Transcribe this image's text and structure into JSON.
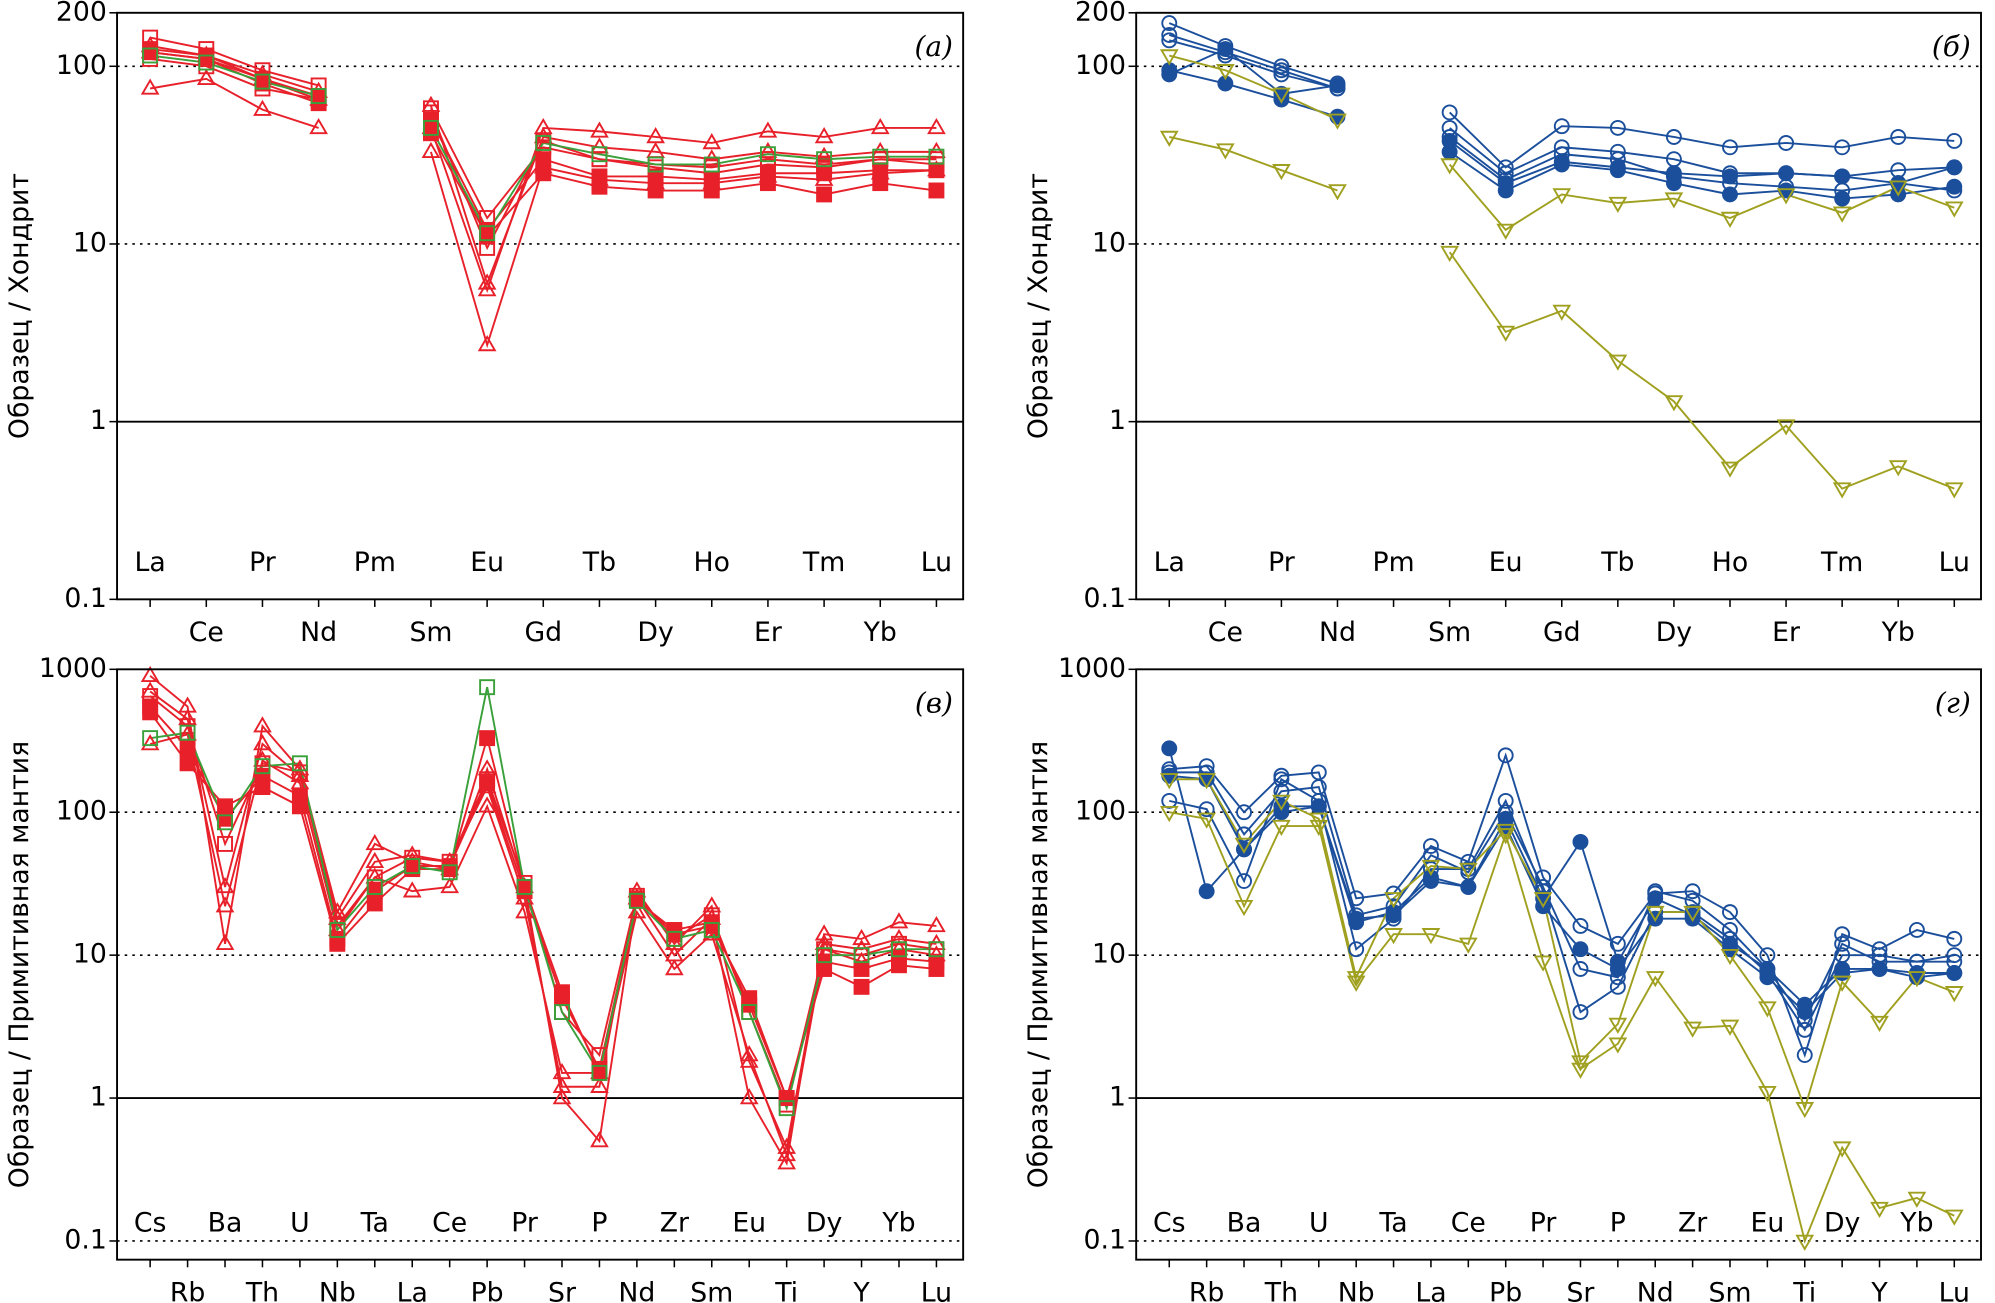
{
  "chart_data": [
    {
      "type": "line",
      "panel_label": "(а)",
      "y_label": "Образец / Хондрит",
      "log_scale": true,
      "reference_line": 1,
      "grid": "dotted",
      "categories": [
        "La",
        "Ce",
        "Pr",
        "Nd",
        "Pm",
        "Sm",
        "Eu",
        "Gd",
        "Tb",
        "Dy",
        "Ho",
        "Er",
        "Tm",
        "Yb",
        "Lu"
      ],
      "ylim": [
        0.1,
        200
      ],
      "yticks": [
        0.1,
        1,
        10,
        100,
        200
      ],
      "series": [
        {
          "color": "#e8202a",
          "marker": "triangle-up",
          "filled": false,
          "values": [
            75,
            85,
            57,
            45,
            null,
            33,
            2.7,
            27,
            23,
            22,
            22,
            24,
            23,
            25,
            26
          ]
        },
        {
          "color": "#e8202a",
          "marker": "triangle-up",
          "filled": false,
          "values": [
            120,
            110,
            85,
            65,
            null,
            45,
            5.5,
            45,
            43,
            40,
            37,
            43,
            40,
            45,
            45
          ]
        },
        {
          "color": "#e8202a",
          "marker": "square",
          "filled": true,
          "values": [
            120,
            110,
            80,
            62,
            null,
            42,
            11,
            25,
            21,
            20,
            20,
            22,
            19,
            22,
            20
          ]
        },
        {
          "color": "#e8202a",
          "marker": "square",
          "filled": false,
          "values": [
            145,
            125,
            95,
            78,
            null,
            58,
            14,
            35,
            30,
            28,
            27,
            30,
            28,
            30,
            28
          ]
        },
        {
          "color": "#e8202a",
          "marker": "triangle-up",
          "filled": false,
          "values": [
            130,
            115,
            90,
            72,
            null,
            60,
            6,
            40,
            35,
            33,
            30,
            33,
            31,
            33,
            33
          ]
        },
        {
          "color": "#e8202a",
          "marker": "square",
          "filled": true,
          "values": [
            125,
            115,
            85,
            68,
            null,
            50,
            12,
            30,
            24,
            24,
            23,
            25,
            25,
            26,
            26
          ]
        },
        {
          "color": "#e8202a",
          "marker": "square",
          "filled": false,
          "values": [
            110,
            100,
            75,
            65,
            null,
            55,
            9.5,
            38,
            30,
            27,
            25,
            28,
            27,
            30,
            30
          ]
        },
        {
          "color": "#3aa03a",
          "marker": "square",
          "filled": false,
          "values": [
            115,
            105,
            82,
            68,
            null,
            45,
            11.5,
            37,
            32,
            28,
            28,
            32,
            30,
            31,
            31
          ]
        }
      ]
    },
    {
      "type": "line",
      "panel_label": "(б)",
      "y_label": "Образец / Хондрит",
      "log_scale": true,
      "reference_line": 1,
      "grid": "dotted",
      "categories": [
        "La",
        "Ce",
        "Pr",
        "Nd",
        "Pm",
        "Sm",
        "Eu",
        "Gd",
        "Tb",
        "Dy",
        "Ho",
        "Er",
        "Tm",
        "Yb",
        "Lu"
      ],
      "ylim": [
        0.1,
        200
      ],
      "yticks": [
        0.1,
        1,
        10,
        100,
        200
      ],
      "series": [
        {
          "color": "#1b4f9c",
          "marker": "circle",
          "filled": false,
          "values": [
            175,
            130,
            100,
            80,
            null,
            55,
            27,
            46,
            45,
            40,
            35,
            37,
            35,
            40,
            38
          ]
        },
        {
          "color": "#1b4f9c",
          "marker": "circle",
          "filled": false,
          "values": [
            150,
            120,
            95,
            75,
            null,
            45,
            25,
            35,
            33,
            30,
            25,
            25,
            24,
            26,
            27
          ]
        },
        {
          "color": "#1b4f9c",
          "marker": "circle",
          "filled": true,
          "values": [
            95,
            80,
            65,
            52,
            null,
            33,
            20,
            28,
            26,
            22,
            19,
            20,
            18,
            19,
            21
          ]
        },
        {
          "color": "#1b4f9c",
          "marker": "circle",
          "filled": true,
          "values": [
            90,
            125,
            70,
            78,
            null,
            38,
            22,
            29,
            27,
            25,
            24,
            25,
            24,
            22,
            27
          ]
        },
        {
          "color": "#1b4f9c",
          "marker": "circle",
          "filled": false,
          "values": [
            140,
            115,
            90,
            75,
            null,
            40,
            23,
            32,
            30,
            24,
            22,
            21,
            20,
            22,
            20
          ]
        },
        {
          "color": "#a0a020",
          "marker": "triangle-down",
          "filled": false,
          "values": [
            115,
            95,
            70,
            50,
            null,
            28,
            12,
            19,
            17,
            18,
            14,
            19,
            15,
            21,
            16
          ]
        },
        {
          "color": "#a0a020",
          "marker": "triangle-down",
          "filled": false,
          "values": [
            40,
            34,
            26,
            20,
            null,
            9,
            3.2,
            4.2,
            2.2,
            1.3,
            0.55,
            0.95,
            0.42,
            0.56,
            0.42
          ]
        }
      ]
    },
    {
      "type": "line",
      "panel_label": "(в)",
      "y_label": "Образец / Примитивная мантия",
      "log_scale": true,
      "reference_line": 1,
      "grid": "dotted",
      "categories": [
        "Cs",
        "Rb",
        "Ba",
        "Th",
        "U",
        "Nb",
        "Ta",
        "La",
        "Ce",
        "Pb",
        "Pr",
        "Sr",
        "P",
        "Nd",
        "Zr",
        "Sm",
        "Eu",
        "Ti",
        "Dy",
        "Y",
        "Yb",
        "Lu"
      ],
      "ylim": [
        0.074,
        1000
      ],
      "yticks": [
        0.1,
        1,
        10,
        100,
        1000
      ],
      "series": [
        {
          "color": "#e8202a",
          "marker": "triangle-up",
          "filled": false,
          "values": [
            900,
            550,
            12,
            400,
            200,
            20,
            60,
            45,
            40,
            200,
            30,
            1.0,
            0.5,
            25,
            10,
            18,
            1.0,
            0.35,
            14,
            13,
            17,
            16
          ]
        },
        {
          "color": "#e8202a",
          "marker": "square",
          "filled": true,
          "values": [
            500,
            220,
            110,
            150,
            110,
            12,
            23,
            40,
            40,
            330,
            30,
            5.5,
            1.5,
            25,
            14,
            16,
            5,
            1.0,
            8,
            6,
            8.5,
            8
          ]
        },
        {
          "color": "#e8202a",
          "marker": "triangle-up",
          "filled": false,
          "values": [
            300,
            350,
            22,
            230,
            160,
            15,
            35,
            28,
            30,
            110,
            20,
            1.5,
            1.5,
            20,
            8,
            14,
            2,
            0.4,
            11,
            9,
            11,
            10
          ]
        },
        {
          "color": "#e8202a",
          "marker": "triangle-up",
          "filled": false,
          "values": [
            700,
            450,
            30,
            300,
            180,
            18,
            45,
            50,
            45,
            150,
            25,
            1.2,
            1.2,
            28,
            12,
            22,
            1.8,
            0.45,
            12,
            11,
            13,
            12
          ]
        },
        {
          "color": "#e8202a",
          "marker": "square",
          "filled": true,
          "values": [
            550,
            280,
            90,
            180,
            130,
            13,
            28,
            42,
            42,
            160,
            28,
            5,
            1.6,
            24,
            15,
            17,
            4.5,
            1.0,
            9,
            8,
            9.5,
            9
          ]
        },
        {
          "color": "#e8202a",
          "marker": "square",
          "filled": false,
          "values": [
            650,
            400,
            60,
            220,
            190,
            16,
            35,
            48,
            45,
            170,
            32,
            4,
            2,
            26,
            13,
            19,
            4,
            0.9,
            11,
            10,
            12,
            11
          ]
        },
        {
          "color": "#3aa03a",
          "marker": "square",
          "filled": false,
          "values": [
            330,
            360,
            85,
            210,
            220,
            15,
            30,
            42,
            38,
            750,
            30,
            4,
            1.5,
            24,
            13,
            15,
            4,
            0.85,
            10,
            10,
            11,
            11
          ]
        }
      ]
    },
    {
      "type": "line",
      "panel_label": "(г)",
      "y_label": "Образец / Примитивная мантия",
      "log_scale": true,
      "reference_line": 1,
      "grid": "dotted",
      "categories": [
        "Cs",
        "Rb",
        "Ba",
        "Th",
        "U",
        "Nb",
        "Ta",
        "La",
        "Ce",
        "Pb",
        "Pr",
        "Sr",
        "P",
        "Nd",
        "Zr",
        "Sm",
        "Eu",
        "Ti",
        "Dy",
        "Y",
        "Yb",
        "Lu"
      ],
      "ylim": [
        0.074,
        1000
      ],
      "yticks": [
        0.1,
        1,
        10,
        100,
        1000
      ],
      "series": [
        {
          "color": "#1b4f9c",
          "marker": "circle",
          "filled": true,
          "values": [
            280,
            28,
            55,
            110,
            110,
            17,
            20,
            35,
            30,
            90,
            25,
            62,
            9,
            25,
            19,
            12,
            8,
            4.5,
            8,
            8,
            7,
            7.5
          ]
        },
        {
          "color": "#1b4f9c",
          "marker": "circle",
          "filled": false,
          "values": [
            200,
            210,
            100,
            180,
            190,
            25,
            27,
            58,
            45,
            250,
            35,
            16,
            12,
            27,
            28,
            20,
            10,
            2,
            14,
            11,
            15,
            13
          ]
        },
        {
          "color": "#1b4f9c",
          "marker": "circle",
          "filled": false,
          "values": [
            120,
            105,
            33,
            170,
            120,
            11,
            18,
            40,
            40,
            120,
            28,
            4,
            6,
            20,
            20,
            13,
            7.5,
            3,
            10,
            10,
            9,
            10
          ]
        },
        {
          "color": "#1b4f9c",
          "marker": "circle",
          "filled": false,
          "values": [
            190,
            190,
            70,
            140,
            150,
            19,
            22,
            50,
            38,
            100,
            30,
            8,
            7,
            28,
            24,
            15,
            8,
            3.5,
            12,
            9,
            9,
            9
          ]
        },
        {
          "color": "#1b4f9c",
          "marker": "circle",
          "filled": true,
          "values": [
            180,
            170,
            55,
            100,
            110,
            18,
            19,
            33,
            30,
            80,
            22,
            11,
            8,
            18,
            18,
            11,
            7,
            4,
            7.5,
            8,
            7.5,
            7.5
          ]
        },
        {
          "color": "#a0a020",
          "marker": "triangle-down",
          "filled": false,
          "values": [
            100,
            90,
            22,
            80,
            80,
            6.5,
            14,
            14,
            12,
            70,
            9,
            1.6,
            2.4,
            7,
            3.1,
            3.2,
            1.1,
            0.1,
            0.45,
            0.17,
            0.2,
            0.15
          ]
        },
        {
          "color": "#a0a020",
          "marker": "triangle-down",
          "filled": false,
          "values": [
            170,
            170,
            60,
            120,
            90,
            7,
            25,
            42,
            40,
            75,
            25,
            1.8,
            3.3,
            20,
            20,
            10,
            4.3,
            0.85,
            6.5,
            3.4,
            7,
            5.5
          ]
        }
      ]
    }
  ]
}
